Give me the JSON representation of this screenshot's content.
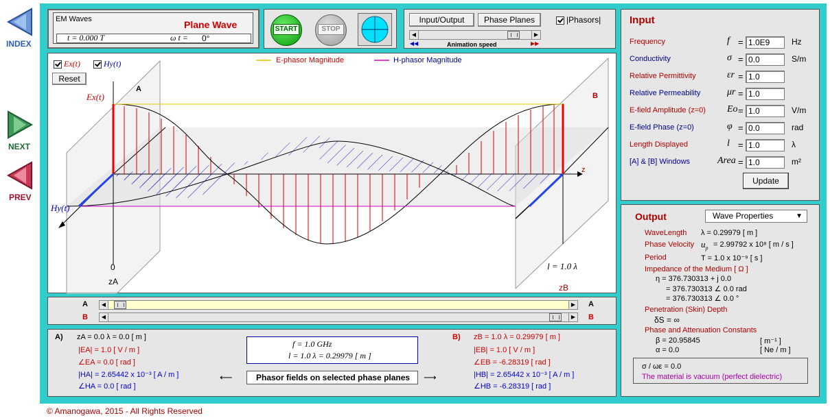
{
  "nav": {
    "index": "INDEX",
    "next": "NEXT",
    "prev": "PREV"
  },
  "title": {
    "app": "EM Waves",
    "wave": "Plane Wave",
    "t_label": "t = 0.000 T",
    "wt_label": "ω t =",
    "wt_value": "0°"
  },
  "controls": {
    "start": "START",
    "stop": "STOP",
    "io": "Input/Output",
    "phase_planes": "Phase Planes",
    "phasors": "|Phasors|",
    "anim_speed": "Animation speed"
  },
  "plot": {
    "ex_check": "Ex(t)",
    "hy_check": "Hy(t)",
    "reset": "Reset",
    "legend_e": "E-phasor Magnitude",
    "legend_h": "H-phasor Magnitude",
    "label_ex": "Ex(t)",
    "label_hy": "Hy(t)",
    "label_a": "A",
    "label_b": "B",
    "label_z": "z",
    "zero": "0",
    "len": "l = 1.0 λ",
    "za": "zA",
    "zb": "zB"
  },
  "sliders": {
    "a": "A",
    "b": "B"
  },
  "input": {
    "title": "Input",
    "rows": [
      {
        "label": "Frequency",
        "sym": "f",
        "value": "1.0E9",
        "unit": "Hz"
      },
      {
        "label": "Conductivity",
        "sym": "σ",
        "value": "0.0",
        "unit": "S/m"
      },
      {
        "label": "Relative Permittivity",
        "sym": "εr",
        "value": "1.0",
        "unit": ""
      },
      {
        "label": "Relative Permeability",
        "sym": "μr",
        "value": "1.0",
        "unit": ""
      },
      {
        "label": "E-field Amplitude (z=0)",
        "sym": "Eo",
        "value": "1.0",
        "unit": "V/m"
      },
      {
        "label": "E-field Phase (z=0)",
        "sym": "φ",
        "value": "0.0",
        "unit": "rad"
      },
      {
        "label": "Length Displayed",
        "sym": "l",
        "value": "1.0",
        "unit": "λ"
      },
      {
        "label": "[A] & [B] Windows",
        "sym": "Area",
        "value": "1.0",
        "unit": "m²"
      }
    ],
    "update": "Update"
  },
  "output": {
    "title": "Output",
    "select": "Wave Properties",
    "wavelength_label": "WaveLength",
    "wavelength": "λ  =  0.29979  [ m ]",
    "phase_vel_label": "Phase Velocity",
    "phase_vel": "= 2.99792 x 10⁸ [ m / s ]",
    "period_label": "Period",
    "period": "T  = 1.0 x 10⁻⁹ [ s ]",
    "impedance_label": "Impedance of the Medium  [ Ω ]",
    "imp1": "η   = 376.730313 + j 0.0",
    "imp2": "= 376.730313  ∠ 0.0 rad",
    "imp3": "= 376.730313  ∠ 0.0 °",
    "skin_label": "Penetration (Skin) Depth",
    "skin": "δS =  ∞",
    "const_label": "Phase and Attenuation Constants",
    "beta": "β   = 20.95845",
    "beta_unit": "[ m⁻¹ ]",
    "alpha": "α   = 0.0",
    "alpha_unit": "[ Ne / m ]",
    "ratio": "σ / ωε  =  0.0",
    "material": "The material is vacuum (perfect dielectric)"
  },
  "bottom": {
    "a_title": "A)",
    "za": "zA = 0.0 λ    = 0.0 [ m ]",
    "ea": "|EA|  =  1.0     [ V / m ]",
    "ea_phase": "∠EA   =  0.0 [ rad ]",
    "ha": "|HA|  =  2.65442  x  10⁻³   [ A / m ]",
    "ha_phase": "∠HA   =  0.0 [ rad ]",
    "f_box": "f = 1.0  GHz",
    "l_box": "l = 1.0  λ  = 0.29979  [ m ]",
    "center_label": "Phasor fields on selected phase planes",
    "b_title": "B)",
    "zb": "zB = 1.0 λ    = 0.29979  [ m ]",
    "eb": "|EB|  =  1.0     [ V / m ]",
    "eb_phase": "∠EB   =  -6.28319 [ rad ]",
    "hb": "|HB|  =  2.65442  x  10⁻³   [ A / m ]",
    "hb_phase": "∠HB   =  -6.28319 [ rad ]"
  },
  "footer": "©  Amanogawa, 2015 - All Rights Reserved"
}
